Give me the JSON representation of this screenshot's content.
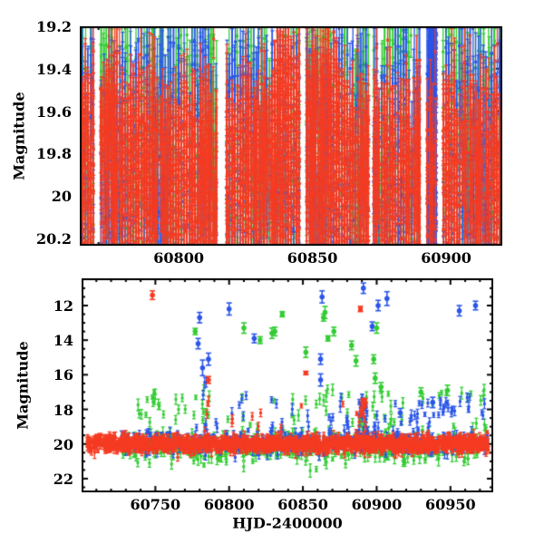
{
  "figure": {
    "background": "#ffffff",
    "frame_color": "#000000",
    "text_color": "#000000"
  },
  "chart_data": {
    "type": "scatter",
    "description": "Two-panel multi-band photometric light curve: apparent magnitude (inverted y-axes) versus heliocentric Julian date. Three photometric bands are plotted as red, green and blue points with vertical error bars. Top panel is a zoom on the faint state (mag 19.2-20.2); bottom panel shows the full range with bright flaring outliers up to magnitude 11 above a dense quiescent band at magnitude ~20.",
    "colors": {
      "red": "#f53b22",
      "green": "#33cc33",
      "blue": "#2a55e8"
    },
    "panels": [
      {
        "id": "top",
        "ylabel": "Magnitude",
        "xlabel": "",
        "x_range": [
          60763,
          60921
        ],
        "y_range": [
          19.2,
          20.235
        ],
        "y_inverted": true,
        "x_major_ticks": [
          60800,
          60850,
          60900
        ],
        "x_tick_labels": [
          "60800",
          "60850",
          "60900"
        ],
        "x_minor_step": 10,
        "y_major_ticks": [
          19.2,
          19.4,
          19.6,
          19.8,
          20.0,
          20.2
        ],
        "y_tick_labels": [
          "19.2",
          "19.4",
          "19.6",
          "19.8",
          "20",
          "20.2"
        ],
        "y_minor_step": 0.05,
        "show_x_tick_labels": true,
        "seed": 7,
        "gaps": [
          [
            60768.3,
            60770.2
          ],
          [
            60814.5,
            60817.2
          ],
          [
            60845.8,
            60847.6
          ],
          [
            60871.0,
            60872.5
          ],
          [
            60890.8,
            60892.3
          ],
          [
            60896.8,
            60898.4
          ]
        ],
        "clusters": [
          {
            "color": "green",
            "n": 850,
            "x": [
              60763.5,
              60920.6
            ],
            "xq": 1,
            "y": {
              "mode": "uniform",
              "a": 19.24,
              "b": 20.18
            },
            "err": [
              0.1,
              0.38
            ]
          },
          {
            "color": "green",
            "n": 260,
            "x": [
              60763.5,
              60920.6
            ],
            "xq": 1,
            "y": {
              "mode": "uniform",
              "a": 19.9,
              "b": 20.22
            },
            "err": [
              0.08,
              0.28
            ]
          },
          {
            "color": "blue",
            "n": 780,
            "x": [
              60763.5,
              60920.6
            ],
            "xq": 1,
            "y": {
              "mode": "uniform",
              "a": 19.42,
              "b": 20.2
            },
            "err": [
              0.09,
              0.32
            ]
          },
          {
            "color": "blue",
            "n": 130,
            "x": [
              60763.5,
              60920.6
            ],
            "xq": 1,
            "y": {
              "mode": "uniform",
              "a": 19.25,
              "b": 19.58
            },
            "err": [
              0.1,
              0.3
            ]
          },
          {
            "color": "blue",
            "n": 240,
            "x": [
              60763.5,
              60920.6
            ],
            "xq": 1,
            "y": {
              "mode": "uniform",
              "a": 19.88,
              "b": 20.22
            },
            "err": [
              0.08,
              0.26
            ]
          },
          {
            "color": "blue",
            "n": 260,
            "x": [
              60893.2,
              60896.4
            ],
            "xq": 0,
            "y": {
              "mode": "uniform",
              "a": 19.22,
              "b": 20.22
            },
            "err": [
              0.1,
              0.35
            ]
          },
          {
            "color": "red",
            "n": 1500,
            "x": [
              60763.5,
              60920.6
            ],
            "xq": 1,
            "y": {
              "mode": "uniform",
              "a": 19.62,
              "b": 20.22
            },
            "err": [
              0.08,
              0.3
            ]
          },
          {
            "color": "red",
            "n": 420,
            "x": [
              60763.5,
              60920.6
            ],
            "xq": 1,
            "y": {
              "mode": "gauss",
              "a": 19.78,
              "b": 0.14
            },
            "clip": [
              19.3,
              20.22
            ],
            "err": [
              0.08,
              0.26
            ]
          },
          {
            "color": "red",
            "n": 150,
            "x": [
              60835,
              60860
            ],
            "xq": 1,
            "y": {
              "mode": "uniform",
              "a": 19.32,
              "b": 19.66
            },
            "err": [
              0.09,
              0.24
            ]
          },
          {
            "color": "red",
            "n": 50,
            "x": [
              60763.5,
              60776
            ],
            "xq": 1,
            "y": {
              "mode": "uniform",
              "a": 19.5,
              "b": 19.7
            },
            "err": [
              0.08,
              0.2
            ]
          },
          {
            "color": "red",
            "n": 40,
            "x": [
              60763.5,
              60920.6
            ],
            "xq": 1,
            "y": {
              "mode": "uniform",
              "a": 19.26,
              "b": 19.5
            },
            "err": [
              0.08,
              0.22
            ]
          }
        ],
        "outliers": []
      },
      {
        "id": "bottom",
        "ylabel": "Magnitude",
        "xlabel": "HJD-2400000",
        "x_range": [
          60700,
          60979
        ],
        "y_range": [
          10.43,
          22.79
        ],
        "y_inverted": true,
        "x_major_ticks": [
          60750,
          60800,
          60850,
          60900,
          60950
        ],
        "x_tick_labels": [
          "60750",
          "60800",
          "60850",
          "60900",
          "60950"
        ],
        "x_minor_step": 10,
        "y_major_ticks": [
          12,
          14,
          16,
          18,
          20,
          22
        ],
        "y_tick_labels": [
          "12",
          "14",
          "16",
          "18",
          "20",
          "22"
        ],
        "y_minor_step": 0.5,
        "show_x_tick_labels": true,
        "seed": 99,
        "gaps": [],
        "clusters": [
          {
            "color": "green",
            "n": 480,
            "x": [
              60727,
              60976
            ],
            "xq": 1,
            "y": {
              "mode": "gauss",
              "a": 20.2,
              "b": 0.42
            },
            "clip": [
              18.2,
              21.9
            ],
            "err": [
              0.1,
              0.4
            ]
          },
          {
            "color": "green",
            "n": 70,
            "x": [
              60737,
              60976
            ],
            "xq": 0,
            "y": {
              "mode": "uniform",
              "a": 16.8,
              "b": 19.0
            },
            "err": [
              0.12,
              0.35
            ]
          },
          {
            "color": "green",
            "n": 8,
            "x": [
              60888,
              60893
            ],
            "xq": 0,
            "y": {
              "mode": "uniform",
              "a": 17.5,
              "b": 19.3
            },
            "err": [
              0.1,
              0.3
            ]
          },
          {
            "color": "green",
            "n": 6,
            "x": [
              60747,
              60750
            ],
            "xq": 0,
            "y": {
              "mode": "uniform",
              "a": 16.9,
              "b": 18.4
            },
            "err": [
              0.12,
              0.3
            ]
          },
          {
            "color": "green",
            "n": 5,
            "x": [
              60781,
              60786
            ],
            "xq": 0,
            "y": {
              "mode": "uniform",
              "a": 17.5,
              "b": 19.4
            },
            "err": [
              0.12,
              0.3
            ]
          },
          {
            "color": "blue",
            "n": 430,
            "x": [
              60727,
              60976
            ],
            "xq": 1,
            "y": {
              "mode": "gauss",
              "a": 19.88,
              "b": 0.3
            },
            "clip": [
              17.9,
              21.4
            ],
            "err": [
              0.1,
              0.35
            ]
          },
          {
            "color": "blue",
            "n": 45,
            "x": [
              60790,
              60976
            ],
            "xq": 0,
            "y": {
              "mode": "uniform",
              "a": 17.2,
              "b": 19.2
            },
            "err": [
              0.12,
              0.35
            ]
          },
          {
            "color": "blue",
            "n": 25,
            "x": [
              60860,
              60976
            ],
            "xq": 0,
            "y": {
              "mode": "uniform",
              "a": 17.4,
              "b": 18.8
            },
            "err": [
              0.12,
              0.3
            ]
          },
          {
            "color": "blue",
            "n": 10,
            "x": [
              60888,
              60893
            ],
            "xq": 0,
            "y": {
              "mode": "uniform",
              "a": 17.3,
              "b": 19.5
            },
            "err": [
              0.1,
              0.3
            ]
          },
          {
            "color": "blue",
            "n": 6,
            "x": [
              60782,
              60785
            ],
            "xq": 0,
            "y": {
              "mode": "uniform",
              "a": 16.0,
              "b": 19.3
            },
            "err": [
              0.15,
              0.4
            ]
          },
          {
            "color": "red",
            "n": 1500,
            "x": [
              60704,
              60976
            ],
            "xq": 1,
            "y": {
              "mode": "gauss",
              "a": 20.0,
              "b": 0.2
            },
            "clip": [
              19.1,
              21.3
            ],
            "err": [
              0.08,
              0.35
            ]
          },
          {
            "color": "red",
            "n": 10,
            "x": [
              60800,
              60970
            ],
            "xq": 0,
            "y": {
              "mode": "uniform",
              "a": 17.6,
              "b": 19.1
            },
            "err": [
              0.1,
              0.25
            ]
          },
          {
            "color": "red",
            "n": 12,
            "x": [
              60888,
              60893
            ],
            "xq": 0,
            "y": {
              "mode": "uniform",
              "a": 17.3,
              "b": 19.4
            },
            "err": [
              0.1,
              0.3
            ]
          },
          {
            "color": "red",
            "n": 4,
            "x": [
              60783,
              60786
            ],
            "xq": 0,
            "y": {
              "mode": "uniform",
              "a": 16.4,
              "b": 19.3
            },
            "err": [
              0.1,
              0.3
            ]
          }
        ],
        "outliers": [
          {
            "x": 60748,
            "mag": 11.4,
            "color": "red",
            "err": 0.25,
            "shape": "c"
          },
          {
            "x": 60780,
            "mag": 12.7,
            "color": "blue",
            "err": 0.3,
            "shape": "c"
          },
          {
            "x": 60800,
            "mag": 12.2,
            "color": "blue",
            "err": 0.35,
            "shape": "c"
          },
          {
            "x": 60777,
            "mag": 13.5,
            "color": "green",
            "err": 0.18,
            "shape": "c"
          },
          {
            "x": 60779,
            "mag": 14.2,
            "color": "blue",
            "err": 0.3,
            "shape": "c"
          },
          {
            "x": 60782,
            "mag": 15.6,
            "color": "blue",
            "err": 0.45,
            "shape": "c"
          },
          {
            "x": 60786,
            "mag": 15.1,
            "color": "blue",
            "err": 0.35,
            "shape": "c"
          },
          {
            "x": 60786,
            "mag": 16.3,
            "color": "red",
            "err": 0.2,
            "shape": "c"
          },
          {
            "x": 60810,
            "mag": 13.3,
            "color": "green",
            "err": 0.3,
            "shape": "c"
          },
          {
            "x": 60817,
            "mag": 13.9,
            "color": "blue",
            "err": 0.25,
            "shape": "c"
          },
          {
            "x": 60821,
            "mag": 14.0,
            "color": "green",
            "err": 0.2,
            "shape": "s"
          },
          {
            "x": 60829,
            "mag": 13.6,
            "color": "green",
            "err": 0.3,
            "shape": "c"
          },
          {
            "x": 60831,
            "mag": 13.5,
            "color": "green",
            "err": 0.25,
            "shape": "c"
          },
          {
            "x": 60836,
            "mag": 12.5,
            "color": "green",
            "err": 0.15,
            "shape": "s"
          },
          {
            "x": 60852,
            "mag": 14.7,
            "color": "green",
            "err": 0.3,
            "shape": "c"
          },
          {
            "x": 60852,
            "mag": 15.9,
            "color": "red",
            "err": 0.1,
            "shape": "s"
          },
          {
            "x": 60862,
            "mag": 15.1,
            "color": "blue",
            "err": 0.3,
            "shape": "c"
          },
          {
            "x": 60862,
            "mag": 16.3,
            "color": "blue",
            "err": 0.35,
            "shape": "c"
          },
          {
            "x": 60863,
            "mag": 11.5,
            "color": "blue",
            "err": 0.35,
            "shape": "c"
          },
          {
            "x": 60864,
            "mag": 12.7,
            "color": "green",
            "err": 0.2,
            "shape": "c"
          },
          {
            "x": 60865,
            "mag": 12.4,
            "color": "green",
            "err": 0.35,
            "shape": "c"
          },
          {
            "x": 60867,
            "mag": 13.9,
            "color": "green",
            "err": 0.15,
            "shape": "s"
          },
          {
            "x": 60871,
            "mag": 13.5,
            "color": "green",
            "err": 0.25,
            "shape": "c"
          },
          {
            "x": 60883,
            "mag": 14.3,
            "color": "green",
            "err": 0.25,
            "shape": "c"
          },
          {
            "x": 60886,
            "mag": 15.2,
            "color": "green",
            "err": 0.3,
            "shape": "c"
          },
          {
            "x": 60889,
            "mag": 12.2,
            "color": "red",
            "err": 0.15,
            "shape": "s"
          },
          {
            "x": 60891,
            "mag": 11.0,
            "color": "blue",
            "err": 0.3,
            "shape": "c"
          },
          {
            "x": 60897,
            "mag": 13.2,
            "color": "blue",
            "err": 0.25,
            "shape": "c"
          },
          {
            "x": 60898,
            "mag": 15.1,
            "color": "green",
            "err": 0.25,
            "shape": "c"
          },
          {
            "x": 60899,
            "mag": 16.2,
            "color": "green",
            "err": 0.3,
            "shape": "c"
          },
          {
            "x": 60900,
            "mag": 13.3,
            "color": "green",
            "err": 0.3,
            "shape": "c"
          },
          {
            "x": 60901,
            "mag": 12.0,
            "color": "blue",
            "err": 0.3,
            "shape": "c"
          },
          {
            "x": 60903,
            "mag": 16.7,
            "color": "green",
            "err": 0.25,
            "shape": "c"
          },
          {
            "x": 60907,
            "mag": 11.6,
            "color": "blue",
            "err": 0.4,
            "shape": "c"
          },
          {
            "x": 60916,
            "mag": 18.2,
            "color": "blue",
            "err": 0.25,
            "shape": "c"
          },
          {
            "x": 60930,
            "mag": 17.0,
            "color": "green",
            "err": 0.25,
            "shape": "c"
          },
          {
            "x": 60938,
            "mag": 17.6,
            "color": "blue",
            "err": 0.3,
            "shape": "c"
          },
          {
            "x": 60948,
            "mag": 16.9,
            "color": "green",
            "err": 0.3,
            "shape": "c"
          },
          {
            "x": 60956,
            "mag": 12.3,
            "color": "blue",
            "err": 0.3,
            "shape": "c"
          },
          {
            "x": 60967,
            "mag": 12.0,
            "color": "blue",
            "err": 0.25,
            "shape": "c"
          }
        ]
      }
    ]
  }
}
